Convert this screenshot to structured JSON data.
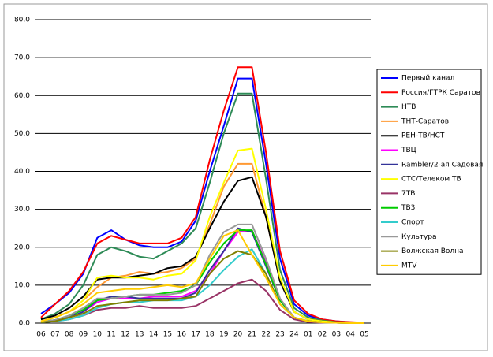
{
  "chart_data": {
    "type": "line",
    "categories": [
      "06",
      "07",
      "08",
      "09",
      "10",
      "11",
      "12",
      "13",
      "14",
      "15",
      "16",
      "17",
      "18",
      "19",
      "20",
      "21",
      "22",
      "23",
      "24",
      "01",
      "02",
      "03",
      "04",
      "05"
    ],
    "ylim": [
      0,
      80
    ],
    "yticks": [
      {
        "value": 0,
        "label": "0,0"
      },
      {
        "value": 10,
        "label": "10,0"
      },
      {
        "value": 20,
        "label": "20,0"
      },
      {
        "value": 30,
        "label": "30,0"
      },
      {
        "value": 40,
        "label": "40,0"
      },
      {
        "value": 50,
        "label": "50,0"
      },
      {
        "value": 60,
        "label": "60,0"
      },
      {
        "value": 70,
        "label": "70,0"
      },
      {
        "value": 80,
        "label": "80,0"
      }
    ],
    "grid": true,
    "legend": "right",
    "series": [
      {
        "name": "Первый канал",
        "color": "#0000ff",
        "values": [
          2.5,
          5,
          8,
          13,
          22.5,
          24.5,
          22,
          20.5,
          20,
          20,
          21.5,
          27,
          40,
          52,
          64.5,
          64.5,
          42,
          17,
          5,
          2,
          1,
          0.5,
          0.2,
          0.1
        ]
      },
      {
        "name": "Россия/ГТРК Саратов",
        "color": "#ff0000",
        "values": [
          1.5,
          5,
          8.5,
          13.5,
          21,
          23,
          22,
          21,
          21,
          21,
          22.5,
          28,
          43,
          56,
          67.5,
          67.5,
          45,
          19,
          6,
          2.5,
          1,
          0.5,
          0.3,
          0.1
        ]
      },
      {
        "name": "НТВ",
        "color": "#2e8b57",
        "values": [
          1,
          2.5,
          5,
          10,
          18,
          20,
          19,
          17.5,
          17,
          19,
          21,
          25,
          37,
          50,
          60.5,
          60.5,
          38,
          14,
          4,
          1.5,
          0.7,
          0.3,
          0.2,
          0.1
        ]
      },
      {
        "name": "ТНТ-Саратов",
        "color": "#ff9933",
        "values": [
          0.5,
          1.5,
          3,
          6,
          9.5,
          12,
          12.5,
          13.5,
          13,
          13.5,
          14.5,
          17,
          26,
          36,
          42,
          42,
          28,
          11,
          3,
          1,
          0.5,
          0.2,
          0.1,
          0.1
        ]
      },
      {
        "name": "РЕН-ТВ/НСТ",
        "color": "#000000",
        "values": [
          1,
          2,
          4,
          7,
          11.5,
          12,
          12,
          12.5,
          13,
          14.5,
          15,
          17.5,
          25,
          32,
          37.5,
          38.5,
          28,
          11,
          3,
          1,
          0.5,
          0.2,
          0.1,
          0.1
        ]
      },
      {
        "name": "ТВЦ",
        "color": "#ff00ff",
        "values": [
          0.3,
          0.8,
          1.5,
          3,
          5.5,
          6.5,
          6.5,
          6.5,
          7,
          7,
          7,
          8.5,
          13,
          19,
          24,
          24.5,
          16,
          6,
          1.5,
          0.5,
          0.2,
          0.1,
          0.1,
          0
        ]
      },
      {
        "name": "Rambler/2-ая Садовая",
        "color": "#333399",
        "values": [
          0.3,
          0.8,
          1.5,
          3,
          6,
          7,
          7,
          6.5,
          6.5,
          6.5,
          6.5,
          8,
          14,
          19,
          25,
          24,
          15,
          6,
          1.5,
          0.5,
          0.2,
          0.1,
          0.1,
          0
        ]
      },
      {
        "name": "СТС/Телеком ТВ",
        "color": "#ffff00",
        "values": [
          0.5,
          1.5,
          3,
          6,
          12,
          12.5,
          12,
          12,
          11.5,
          12.5,
          13,
          16.5,
          28,
          37,
          45.5,
          46,
          30,
          12,
          3,
          1,
          0.5,
          0.2,
          0.1,
          0
        ]
      },
      {
        "name": "7ТВ",
        "color": "#993366",
        "values": [
          0.2,
          0.5,
          1,
          2,
          3.5,
          4,
          4,
          4.5,
          4,
          4,
          4,
          4.5,
          6.5,
          8.5,
          10.5,
          11.5,
          8.5,
          3.5,
          1,
          0.3,
          0.1,
          0.1,
          0,
          0
        ]
      },
      {
        "name": "ТВ3",
        "color": "#00cc00",
        "values": [
          0.3,
          0.8,
          2,
          3.5,
          6,
          6.5,
          7,
          7.5,
          7.5,
          8,
          8.5,
          10,
          16,
          21,
          24.5,
          24.5,
          15.5,
          6,
          1.5,
          0.5,
          0.2,
          0.1,
          0,
          0
        ]
      },
      {
        "name": "Спорт",
        "color": "#33cccc",
        "values": [
          0.2,
          0.5,
          1,
          2,
          4,
          5,
          5.5,
          5.5,
          6,
          6,
          6,
          7,
          10,
          14,
          17.5,
          19.5,
          13,
          5,
          1.5,
          0.5,
          0.2,
          0.1,
          0,
          0
        ]
      },
      {
        "name": "Культура",
        "color": "#999999",
        "values": [
          0.3,
          0.8,
          2,
          4,
          6.5,
          6.5,
          7,
          7.5,
          7.5,
          7.5,
          8,
          10,
          18,
          24,
          26,
          26,
          17,
          6.5,
          1.5,
          0.5,
          0.2,
          0.1,
          0,
          0
        ]
      },
      {
        "name": "Волжская Волна",
        "color": "#808000",
        "values": [
          0.2,
          0.5,
          1.5,
          2.5,
          4.5,
          5,
          5.5,
          6,
          6,
          6,
          6.5,
          7,
          13,
          17,
          19,
          18,
          13,
          5,
          1.5,
          0.5,
          0.2,
          0.1,
          0,
          0
        ]
      },
      {
        "name": "MTV",
        "color": "#ffcc00",
        "values": [
          0.5,
          1.5,
          3,
          5,
          8,
          8.5,
          9,
          9,
          9.5,
          10,
          9.5,
          10.5,
          17,
          23,
          24.5,
          18,
          12,
          5,
          1.5,
          0.5,
          0.2,
          0.1,
          0,
          0
        ]
      }
    ]
  }
}
